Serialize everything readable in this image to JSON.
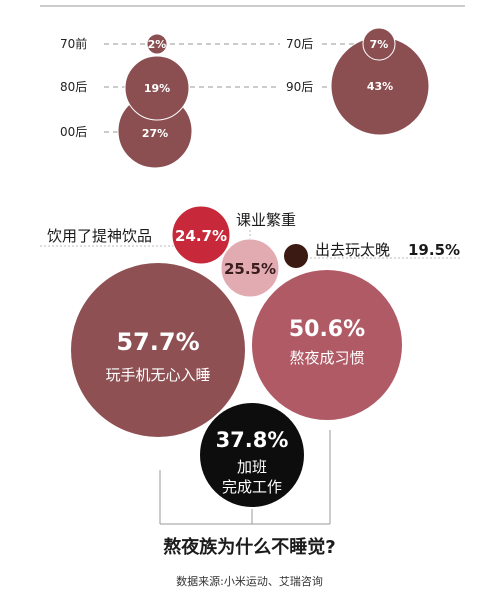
{
  "chart_data": [
    {
      "type": "bubble",
      "title": "",
      "groups": [
        {
          "label": "70前",
          "value": "2%",
          "pct": 2
        },
        {
          "label": "70后",
          "value": "7%",
          "pct": 7
        },
        {
          "label": "80后",
          "value": "19%",
          "pct": 19
        },
        {
          "label": "90后",
          "value": "43%",
          "pct": 43
        },
        {
          "label": "00后",
          "value": "27%",
          "pct": 27
        }
      ]
    },
    {
      "type": "bubble",
      "title": "熬夜族为什么不睡觉?",
      "reasons": [
        {
          "label": "饮用了提神饮品",
          "value": "24.7%",
          "pct": 24.7,
          "color": "#c8293a"
        },
        {
          "label": "课业繁重",
          "value": "25.5%",
          "pct": 25.5,
          "color": "#e2aab1"
        },
        {
          "label": "出去玩太晚",
          "value": "19.5%",
          "pct": 19.5,
          "color": "#3a1a12"
        },
        {
          "label": "玩手机无心入睡",
          "value": "57.7%",
          "pct": 57.7,
          "color": "#8e5053"
        },
        {
          "label": "熬夜成习惯",
          "value": "50.6%",
          "pct": 50.6,
          "color": "#b05a66"
        },
        {
          "label_lines": [
            "加班",
            "完成工作"
          ],
          "value": "37.8%",
          "pct": 37.8,
          "color": "#0d0d0d"
        }
      ]
    }
  ],
  "footer": {
    "title": "熬夜族为什么不睡觉?",
    "source": "数据来源:小米运动、艾瑞咨询"
  },
  "colors": {
    "age_bubble": "#8b4f52",
    "connector": "#999999"
  }
}
